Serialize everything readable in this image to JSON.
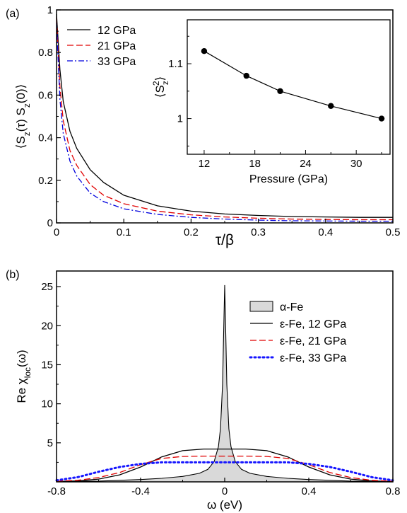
{
  "chart_data": [
    {
      "panel": "(a)",
      "type": "line",
      "xlabel": "τ/β",
      "ylabel": "⟨S_z(τ) S_z(0)⟩",
      "xlim": [
        0,
        0.5
      ],
      "ylim": [
        0,
        1
      ],
      "xticks": [
        "0",
        "0.1",
        "0.2",
        "0.3",
        "0.4",
        "0.5"
      ],
      "yticks": [
        "0",
        "0.2",
        "0.4",
        "0.6",
        "0.8",
        "1"
      ],
      "legend_position": "top-left",
      "series": [
        {
          "name": "12 GPa",
          "color": "#000000",
          "style": "solid",
          "x": [
            0,
            0.005,
            0.01,
            0.02,
            0.03,
            0.05,
            0.07,
            0.1,
            0.15,
            0.2,
            0.25,
            0.3,
            0.35,
            0.4,
            0.45,
            0.5
          ],
          "y": [
            0.98,
            0.72,
            0.57,
            0.43,
            0.35,
            0.25,
            0.19,
            0.13,
            0.08,
            0.055,
            0.042,
            0.035,
            0.03,
            0.028,
            0.026,
            0.026
          ]
        },
        {
          "name": "21 GPa",
          "color": "#e00000",
          "style": "dashed",
          "x": [
            0,
            0.005,
            0.01,
            0.02,
            0.03,
            0.05,
            0.07,
            0.1,
            0.15,
            0.2,
            0.25,
            0.3,
            0.35,
            0.4,
            0.45,
            0.5
          ],
          "y": [
            0.96,
            0.64,
            0.48,
            0.34,
            0.27,
            0.18,
            0.13,
            0.09,
            0.055,
            0.038,
            0.028,
            0.022,
            0.018,
            0.016,
            0.015,
            0.015
          ]
        },
        {
          "name": "33 GPa",
          "color": "#0000dd",
          "style": "dashdot",
          "x": [
            0,
            0.005,
            0.01,
            0.02,
            0.03,
            0.05,
            0.07,
            0.1,
            0.15,
            0.2,
            0.25,
            0.3,
            0.35,
            0.4,
            0.45,
            0.5
          ],
          "y": [
            0.94,
            0.58,
            0.42,
            0.29,
            0.22,
            0.14,
            0.1,
            0.066,
            0.04,
            0.026,
            0.018,
            0.013,
            0.01,
            0.009,
            0.008,
            0.008
          ]
        }
      ]
    },
    {
      "panel": "(a) inset",
      "type": "line",
      "xlabel": "Pressure (GPa)",
      "ylabel": "⟨S_z^2⟩",
      "xlim": [
        10,
        34
      ],
      "ylim": [
        0.935,
        1.18
      ],
      "xticks": [
        "12",
        "18",
        "24",
        "30"
      ],
      "yticks": [
        "1",
        "1.1"
      ],
      "series": [
        {
          "name": "",
          "color": "#000000",
          "style": "solid-markers",
          "x": [
            12,
            17,
            21,
            27,
            33
          ],
          "y": [
            1.123,
            1.078,
            1.05,
            1.023,
            1.0
          ]
        }
      ]
    },
    {
      "panel": "(b)",
      "type": "area",
      "xlabel": "ω (eV)",
      "ylabel": "Re χ_loc(ω)",
      "xlim": [
        -0.8,
        0.8
      ],
      "ylim": [
        0,
        27
      ],
      "xticks": [
        "-0.8",
        "-0.4",
        "0",
        "0.4",
        "0.8"
      ],
      "yticks": [
        "5",
        "10",
        "15",
        "20",
        "25"
      ],
      "legend_position": "right",
      "series": [
        {
          "name": "α-Fe",
          "color": "#000000",
          "fill": "#d9d9d9",
          "style": "filled",
          "x": [
            -0.8,
            -0.6,
            -0.4,
            -0.3,
            -0.2,
            -0.12,
            -0.08,
            -0.05,
            -0.03,
            -0.02,
            -0.01,
            -0.005,
            0,
            0.005,
            0.01,
            0.02,
            0.03,
            0.05,
            0.08,
            0.12,
            0.2,
            0.3,
            0.4,
            0.6,
            0.8
          ],
          "y": [
            0.05,
            0.1,
            0.3,
            0.45,
            0.7,
            1.1,
            1.6,
            2.6,
            4.5,
            6.8,
            12.5,
            19.0,
            25.2,
            19.0,
            12.5,
            6.8,
            4.5,
            2.6,
            1.6,
            1.1,
            0.7,
            0.45,
            0.3,
            0.1,
            0.05
          ]
        },
        {
          "name": "ε-Fe, 12 GPa",
          "color": "#000000",
          "style": "solid",
          "x": [
            -0.8,
            -0.7,
            -0.6,
            -0.5,
            -0.4,
            -0.3,
            -0.2,
            -0.1,
            0,
            0.1,
            0.2,
            0.3,
            0.4,
            0.5,
            0.6,
            0.7,
            0.8
          ],
          "y": [
            0.05,
            0.12,
            0.35,
            0.9,
            1.9,
            3.2,
            4.0,
            4.2,
            4.2,
            4.2,
            4.0,
            3.2,
            1.9,
            0.9,
            0.35,
            0.12,
            0.05
          ]
        },
        {
          "name": "ε-Fe, 21 GPa",
          "color": "#e00000",
          "style": "dashed",
          "x": [
            -0.8,
            -0.7,
            -0.6,
            -0.5,
            -0.4,
            -0.3,
            -0.2,
            -0.1,
            0,
            0.1,
            0.2,
            0.3,
            0.4,
            0.5,
            0.6,
            0.7,
            0.8
          ],
          "y": [
            0.08,
            0.2,
            0.55,
            1.2,
            2.2,
            3.0,
            3.25,
            3.3,
            3.3,
            3.3,
            3.25,
            3.0,
            2.2,
            1.2,
            0.55,
            0.2,
            0.08
          ]
        },
        {
          "name": "ε-Fe, 33 GPa",
          "color": "#1515ff",
          "style": "dotted",
          "x": [
            -0.8,
            -0.7,
            -0.6,
            -0.5,
            -0.4,
            -0.3,
            -0.2,
            -0.1,
            0,
            0.1,
            0.2,
            0.3,
            0.4,
            0.5,
            0.6,
            0.7,
            0.8
          ],
          "y": [
            0.2,
            0.6,
            1.3,
            1.9,
            2.3,
            2.5,
            2.5,
            2.5,
            2.5,
            2.5,
            2.5,
            2.5,
            2.3,
            1.9,
            1.3,
            0.6,
            0.2
          ]
        }
      ]
    }
  ]
}
